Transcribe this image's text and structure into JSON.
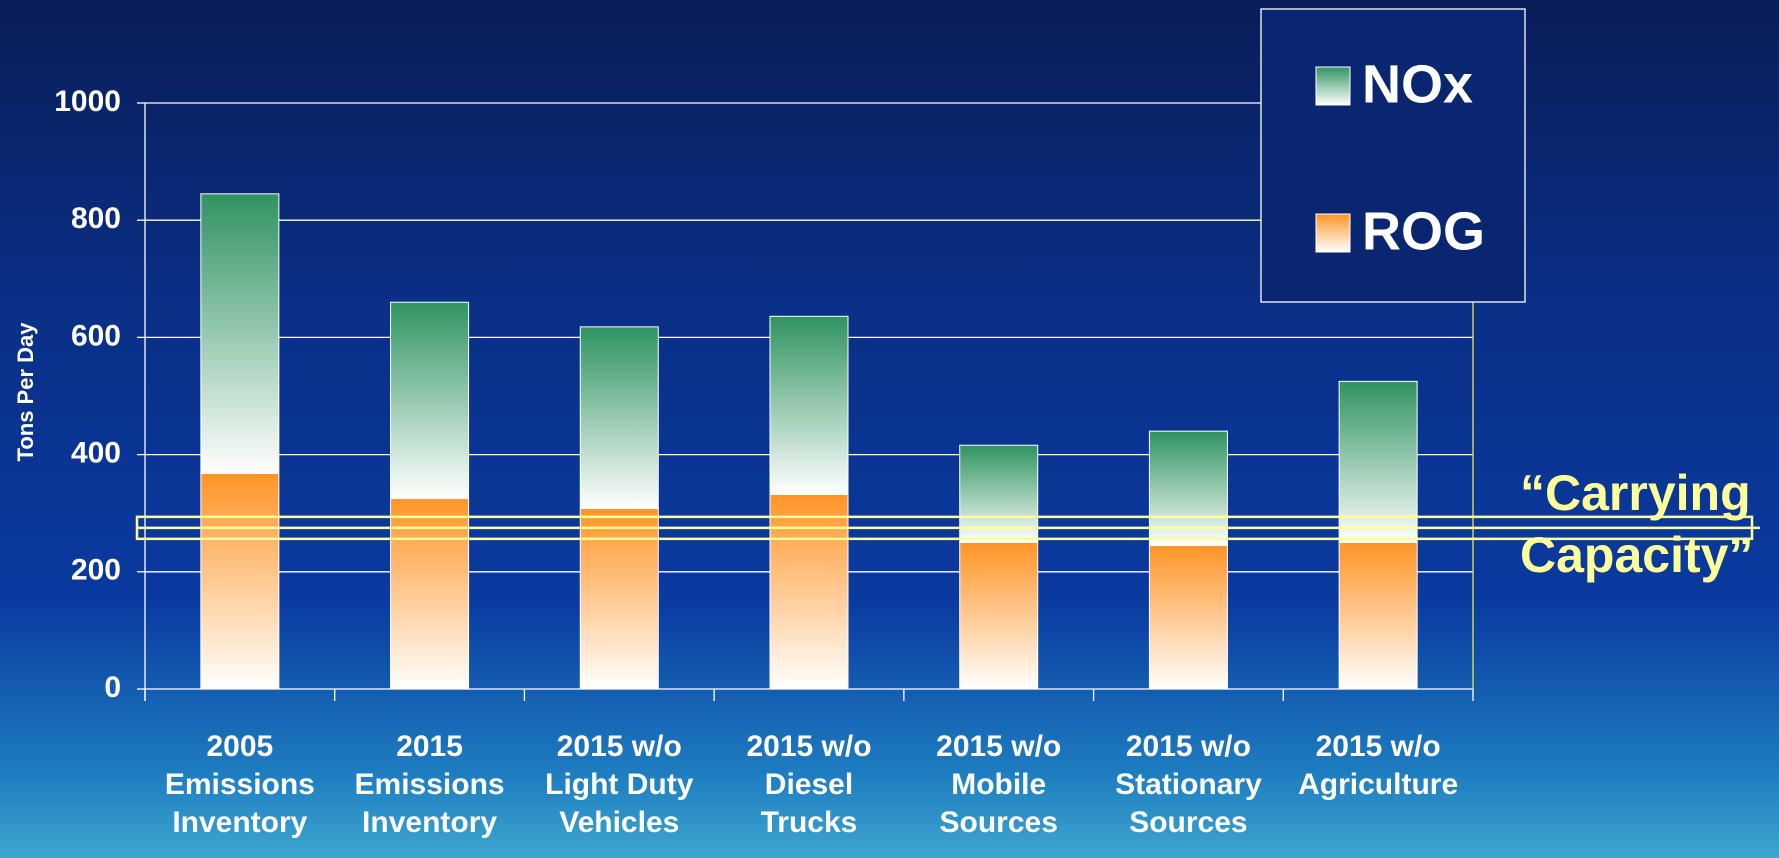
{
  "chart_data": {
    "type": "stacked_bar",
    "y_label": "Tons Per Day",
    "categories": [
      "2005\nEmissions\nInventory",
      "2015\nEmissions\nInventory",
      "2015 w/o\nLight Duty\nVehicles",
      "2015 w/o\nDiesel\nTrucks",
      "2015 w/o\nMobile\nSources",
      "2015 w/o\nStationary\nSources",
      "2015 w/o\nAgriculture"
    ],
    "series": [
      {
        "name": "ROG",
        "color": "#ff9426",
        "values": [
          368,
          325,
          308,
          332,
          250,
          245,
          250
        ]
      },
      {
        "name": "NOx",
        "color": "#2f9360",
        "values": [
          477,
          335,
          310,
          304,
          166,
          195,
          275
        ]
      }
    ],
    "ylim": [
      0,
      1000
    ],
    "yticks": [
      0,
      200,
      400,
      600,
      800,
      1000
    ],
    "grid": true,
    "legend": "upper right",
    "annotation": {
      "text": "“Carrying\nCapacity”",
      "value": 275
    }
  }
}
